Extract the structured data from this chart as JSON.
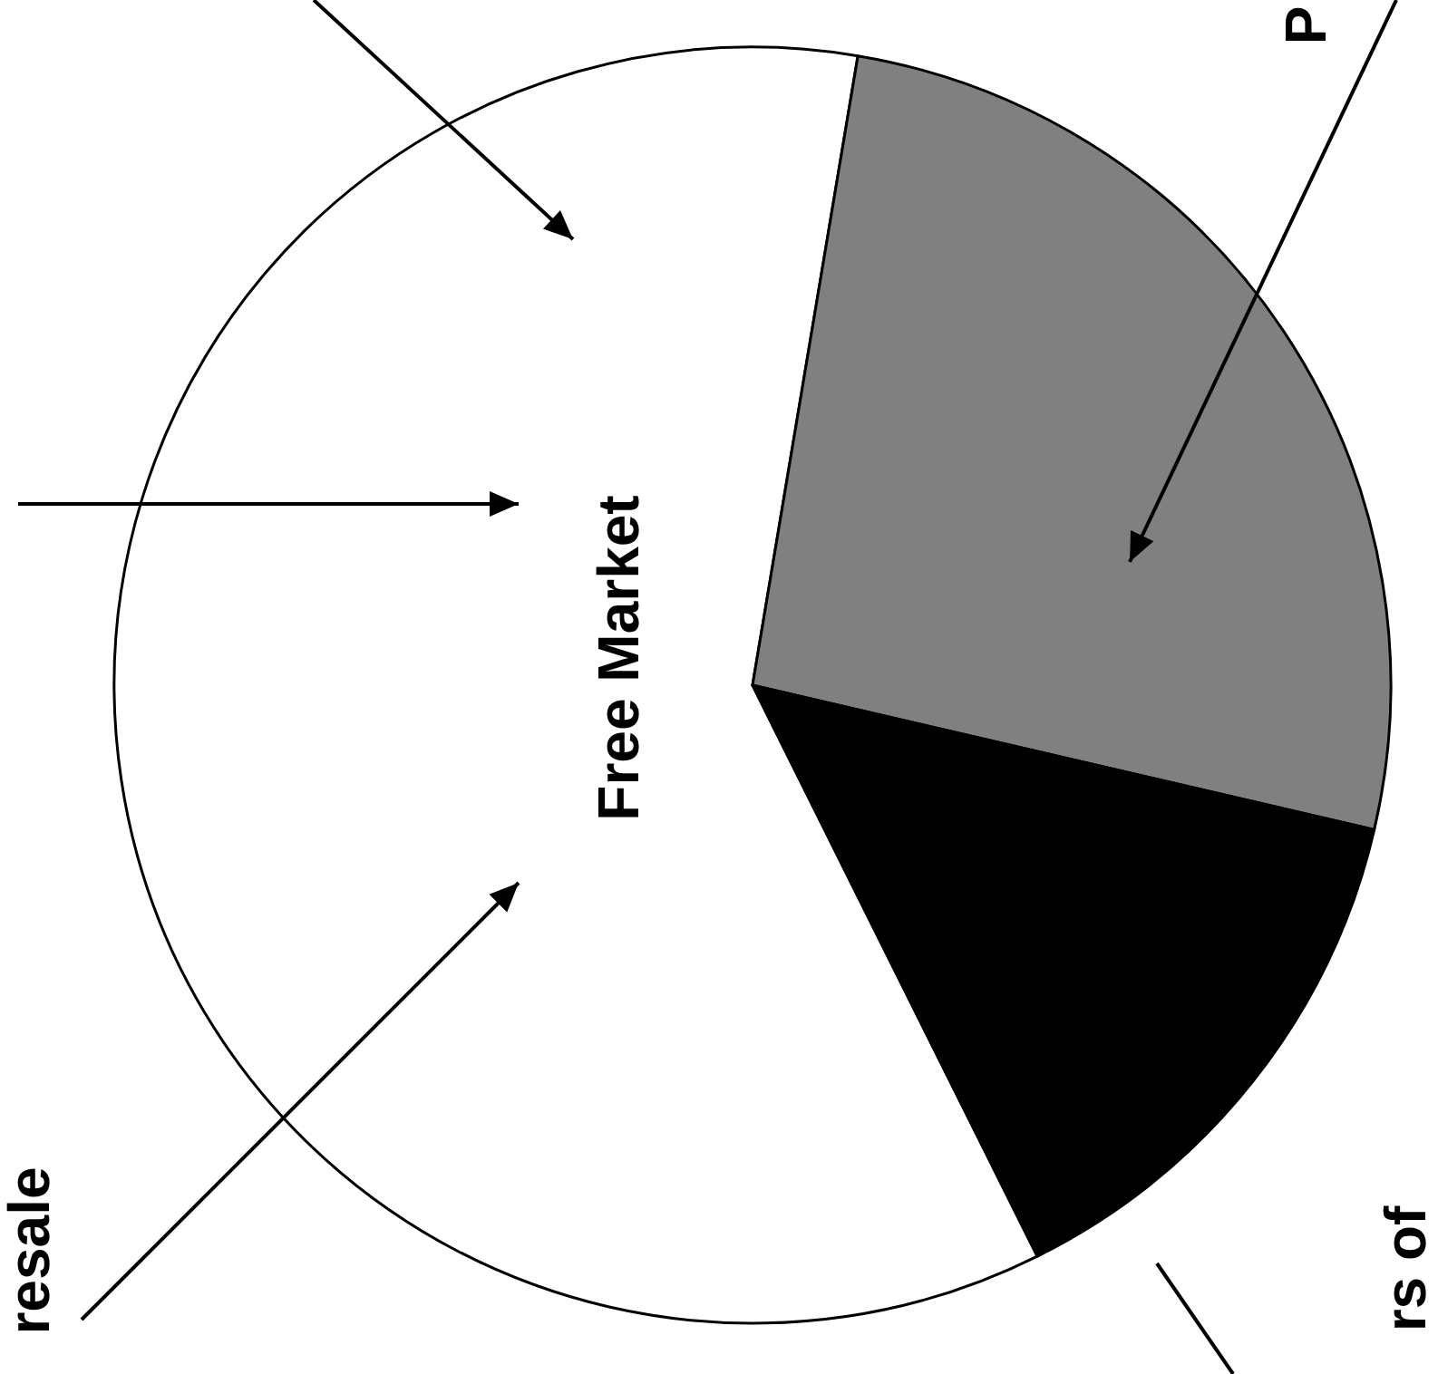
{
  "chart_data": {
    "type": "pie",
    "categories": [
      "Free Market",
      "P",
      "rs of"
    ],
    "values": [
      60,
      26,
      14
    ],
    "colors": [
      "#ffffff",
      "#808080",
      "#000000"
    ],
    "annotations": [
      "resale"
    ]
  }
}
